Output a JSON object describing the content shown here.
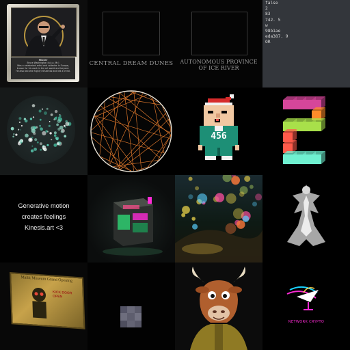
{
  "tiles": {
    "t1": {
      "caption_title": "Mister",
      "caption_lines": [
        "Bruce Washington (a.k.a. Mr.)",
        "Was a celebrated artist and collector in Europe,",
        "known for his work in the art world and beyond.",
        "He also became highly influential and led a trend."
      ]
    },
    "t2": {
      "title": "CENTRAL DREAM DUNES"
    },
    "t3": {
      "title_line1": "AUTONOMOUS PROVINCE",
      "title_line2": "OF ICE RIVER"
    },
    "t4": {
      "lines": [
        "false",
        "2",
        "83",
        "742. 5",
        "w",
        "98b1ae",
        "eda387. 9",
        "OR"
      ]
    },
    "t8": {
      "jersey_number": "456"
    },
    "t9": {
      "lines": [
        "Generative motion",
        "creates feelings",
        "Kinesis.art <3"
      ]
    },
    "t13": {
      "sign_text": "Malik Museum Grand Opening",
      "side_text": "KICK DOOR OPEN"
    },
    "t16": {
      "logo_text": "NETWORK CRYPTO"
    }
  },
  "colors": {
    "accent_green": "#2ecc71",
    "accent_magenta": "#ff2bd6",
    "gold": "#c7a24a"
  }
}
